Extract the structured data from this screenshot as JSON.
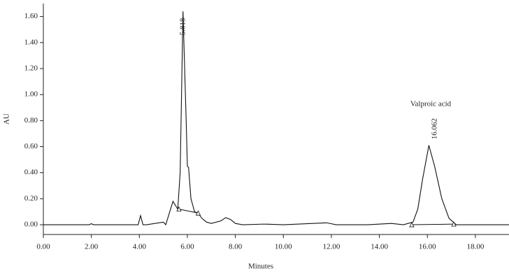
{
  "chart_data": {
    "type": "line",
    "x_label": "Minutes",
    "y_label": "AU",
    "x": [
      0,
      1.9,
      2.0,
      2.1,
      3.95,
      4.05,
      4.15,
      4.3,
      5.0,
      5.1,
      5.4,
      5.5,
      5.6,
      5.7,
      5.818,
      5.95,
      6.0,
      6.05,
      6.15,
      6.3,
      6.45,
      6.6,
      6.8,
      7.0,
      7.4,
      7.6,
      7.8,
      8.0,
      8.3,
      9.2,
      10.0,
      11.8,
      12.2,
      13.5,
      14.5,
      15.0,
      15.4,
      15.6,
      15.8,
      16.062,
      16.3,
      16.6,
      16.9,
      17.2,
      19.4
    ],
    "series": [
      {
        "color": "#111111",
        "values": [
          0.0,
          0.0,
          0.008,
          0.0,
          0.0,
          0.07,
          0.0,
          0.0,
          0.02,
          0.0,
          0.18,
          0.15,
          0.12,
          0.4,
          1.64,
          0.8,
          0.45,
          0.44,
          0.2,
          0.1,
          0.09,
          0.05,
          0.02,
          0.01,
          0.03,
          0.055,
          0.04,
          0.01,
          0.0,
          0.005,
          0.0,
          0.015,
          0.0,
          0.0,
          0.01,
          0.0,
          0.02,
          0.12,
          0.35,
          0.61,
          0.45,
          0.2,
          0.05,
          0.0,
          0.0
        ]
      }
    ],
    "baselines": [
      {
        "x": [
          5.65,
          6.45
        ],
        "values": [
          0.12,
          0.09
        ]
      },
      {
        "x": [
          15.35,
          17.1
        ],
        "values": [
          0.0,
          0.005
        ]
      }
    ],
    "annotations": [
      {
        "text": "5.818"
      },
      {
        "text": "16.062"
      },
      {
        "text": "Valproic acid"
      }
    ],
    "xlim": [
      0,
      19.4
    ],
    "ylim": [
      -0.075,
      1.7
    ],
    "xticks": [
      {
        "value": 0,
        "label": "0.00"
      },
      {
        "value": 2,
        "label": "2.00"
      },
      {
        "value": 4,
        "label": "4.00"
      },
      {
        "value": 6,
        "label": "6.00"
      },
      {
        "value": 8,
        "label": "8.00"
      },
      {
        "value": 10,
        "label": "10.00"
      },
      {
        "value": 12,
        "label": "12.00"
      },
      {
        "value": 14,
        "label": "14.00"
      },
      {
        "value": 16,
        "label": "16.00"
      },
      {
        "value": 18,
        "label": "18.00"
      }
    ],
    "yticks": [
      {
        "value": 0,
        "label": "0.00"
      },
      {
        "value": 0.2,
        "label": "0.20"
      },
      {
        "value": 0.4,
        "label": "0.40"
      },
      {
        "value": 0.6,
        "label": "0.60"
      },
      {
        "value": 0.8,
        "label": "0.80"
      },
      {
        "value": 1.0,
        "label": "1.00"
      },
      {
        "value": 1.2,
        "label": "1.20"
      },
      {
        "value": 1.4,
        "label": "1.40"
      },
      {
        "value": 1.6,
        "label": "1.60"
      }
    ],
    "grid": false
  }
}
